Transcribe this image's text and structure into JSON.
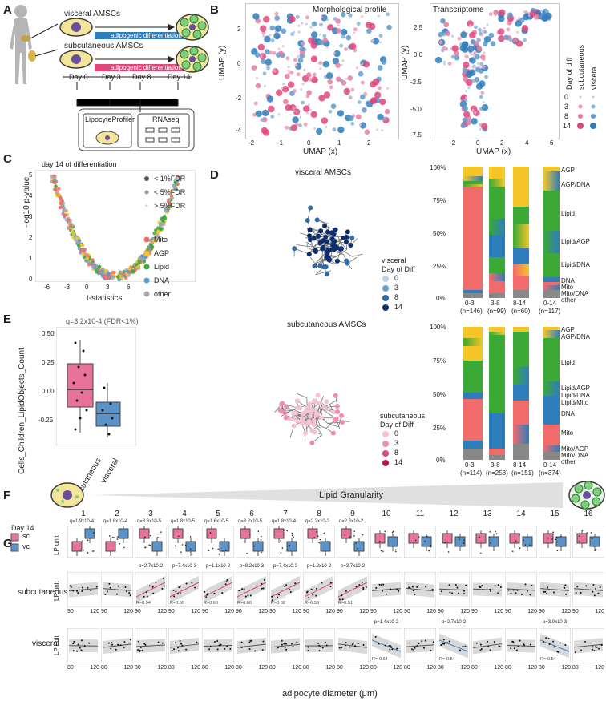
{
  "panel_labels": {
    "a": "A",
    "b": "B",
    "c": "C",
    "d": "D",
    "e": "E",
    "f": "F",
    "g": "G"
  },
  "panelA": {
    "visceral": "visceral AMSCs",
    "subcutaneous": "subcutaneous AMSCs",
    "diff_label": "adipogenic differentiation",
    "days": [
      "Day 0",
      "Day 3",
      "Day 8",
      "Day 14"
    ],
    "box1": "LipocyteProfiler",
    "box2": "RNAseq"
  },
  "panelB": {
    "morph_title": "Morphological profile",
    "trans_title": "Transcriptome",
    "xlabel": "UMAP (x)",
    "ylabel": "UMAP (y)",
    "legend_title": "Day of diff",
    "legend_sub": "subcutaneous",
    "legend_vis": "visceral",
    "legend_days": [
      "0",
      "3",
      "8",
      "14"
    ],
    "morph_xticks": [
      "-2",
      "-1",
      "0",
      "1",
      "2"
    ],
    "morph_yticks": [
      "2",
      "0",
      "-2",
      "-4"
    ],
    "trans_xticks": [
      "-2",
      "0",
      "2",
      "4",
      "6"
    ],
    "trans_yticks": [
      "2.5",
      "0.0",
      "-2.5",
      "-5.0",
      "-7.5"
    ],
    "colors": {
      "sc": "#e0457b",
      "vc": "#2e7ebc"
    }
  },
  "panelC": {
    "title": "day 14 of differentiation",
    "xlabel": "t-statistics",
    "ylabel": "-log10 p-value",
    "xticks": [
      "-6",
      "-3",
      "0",
      "3",
      "6"
    ],
    "yticks": [
      "0",
      "1",
      "2",
      "3",
      "4",
      "5"
    ],
    "fdr_legend": [
      "< 1%FDR",
      "< 5%FDR",
      "> 5%FDR"
    ],
    "cat_legend": [
      {
        "label": "Mito",
        "color": "#f16b6b"
      },
      {
        "label": "AGP",
        "color": "#f5c528"
      },
      {
        "label": "Lipid",
        "color": "#3aa935"
      },
      {
        "label": "DNA",
        "color": "#5b9bd5"
      },
      {
        "label": "other",
        "color": "#aaaaaa"
      }
    ]
  },
  "panelD": {
    "vis_title": "visceral AMSCs",
    "sub_title": "subcutaneous AMSCs",
    "vis_legend_title": [
      "visceral",
      "Day of Diff"
    ],
    "sub_legend_title": [
      "subcutaneous",
      "Day of Diff"
    ],
    "legend_days": [
      "0",
      "3",
      "8",
      "14"
    ],
    "vis_colors": [
      "#b9d3ea",
      "#6c9fcf",
      "#2f6aad",
      "#0d2e6e"
    ],
    "sub_colors": [
      "#f5c2d3",
      "#ec8fb0",
      "#e0457b",
      "#c0104f"
    ],
    "yticks": [
      "100%",
      "75%",
      "50%",
      "25%",
      "0%"
    ],
    "bar_x_top": [
      "0-3",
      "3-8",
      "8-14",
      "0-14"
    ],
    "bar_n_top": [
      "(n=146)",
      "(n=99)",
      "(n=60)",
      "(n=117)"
    ],
    "bar_x_bottom": [
      "0-3",
      "3-8",
      "8-14",
      "0-14"
    ],
    "bar_n_bottom": [
      "(n=114)",
      "(n=258)",
      "(n=151)",
      "(n=374)"
    ],
    "top_labels": [
      "AGP",
      "AGP/DNA",
      "Lipid",
      "Lipid/AGP",
      "Lipid/DNA",
      "DNA",
      "Mito",
      "Mito/DNA",
      "other"
    ],
    "bottom_labels": [
      "AGP",
      "AGP/DNA",
      "Lipid",
      "Lipid/AGP",
      "Lipid/DNA",
      "Lipid/Mito",
      "DNA",
      "Mito",
      "Mito/AGP",
      "Mito/DNA",
      "other"
    ]
  },
  "panelE": {
    "qlabel": "q=3.2x10-4 (FDR<1%)",
    "ylabel": "Cells_Children_LipidObjects_Count",
    "yticks": [
      "0.50",
      "0.25",
      "0.00",
      "-0.25"
    ],
    "groups": [
      "subcutaneous",
      "visceral"
    ]
  },
  "granularity_label": "Lipid Granularity",
  "panelF": {
    "day_label": "Day 14",
    "legend": [
      {
        "label": "sc",
        "color": "#e8739a"
      },
      {
        "label": "vc",
        "color": "#5b93c9"
      }
    ],
    "ylabel": "LP unit",
    "numbers": [
      "1",
      "2",
      "3",
      "4",
      "5",
      "6",
      "7",
      "8",
      "9",
      "10",
      "11",
      "12",
      "13",
      "14",
      "15",
      "16"
    ],
    "qvals": [
      "q=1.9x10-4",
      "q=1.8x10-4",
      "q=3.6x10-5",
      "q=1.8x10-5",
      "q=1.6x10-5",
      "q=3.2x10-5",
      "q=1.8x10-4",
      "q=2.2x10-3",
      "q=2.6x10-2",
      "",
      "",
      "",
      "",
      "",
      "",
      ""
    ]
  },
  "panelG": {
    "row1": "subcutaneous",
    "row2": "visceral",
    "ylabel": "LP unit",
    "xlabel": "adipocyte diameter (μm)",
    "top_xticks": [
      "90",
      "120"
    ],
    "bottom_xticks": [
      "80",
      "120"
    ],
    "sc_p": [
      "",
      "",
      "p=2.7x10-2",
      "p=7.4x10-3",
      "p=1.1x10-2",
      "p=8.2x10-3",
      "p=7.4x10-3",
      "p=1.2x10-2",
      "p=3.7x10-2",
      "",
      "",
      "",
      "",
      "",
      "",
      ""
    ],
    "sc_r": [
      "",
      "",
      "R=0.54",
      "R=0.60",
      "R=0.60",
      "R=0.60",
      "R=0.62",
      "R=0.58",
      "R=0.51",
      "",
      "",
      "",
      "",
      "",
      "",
      ""
    ],
    "vc_p": [
      "",
      "",
      "",
      "",
      "",
      "",
      "",
      "",
      "",
      "p=1.4x10-2",
      "",
      "p=2.7x10-2",
      "",
      "",
      "p=3.0x10-3",
      ""
    ],
    "vc_r": [
      "",
      "",
      "",
      "",
      "",
      "",
      "",
      "",
      "",
      "R=-0.64",
      "",
      "R=-0.54",
      "",
      "",
      "R=-0.54",
      ""
    ]
  }
}
